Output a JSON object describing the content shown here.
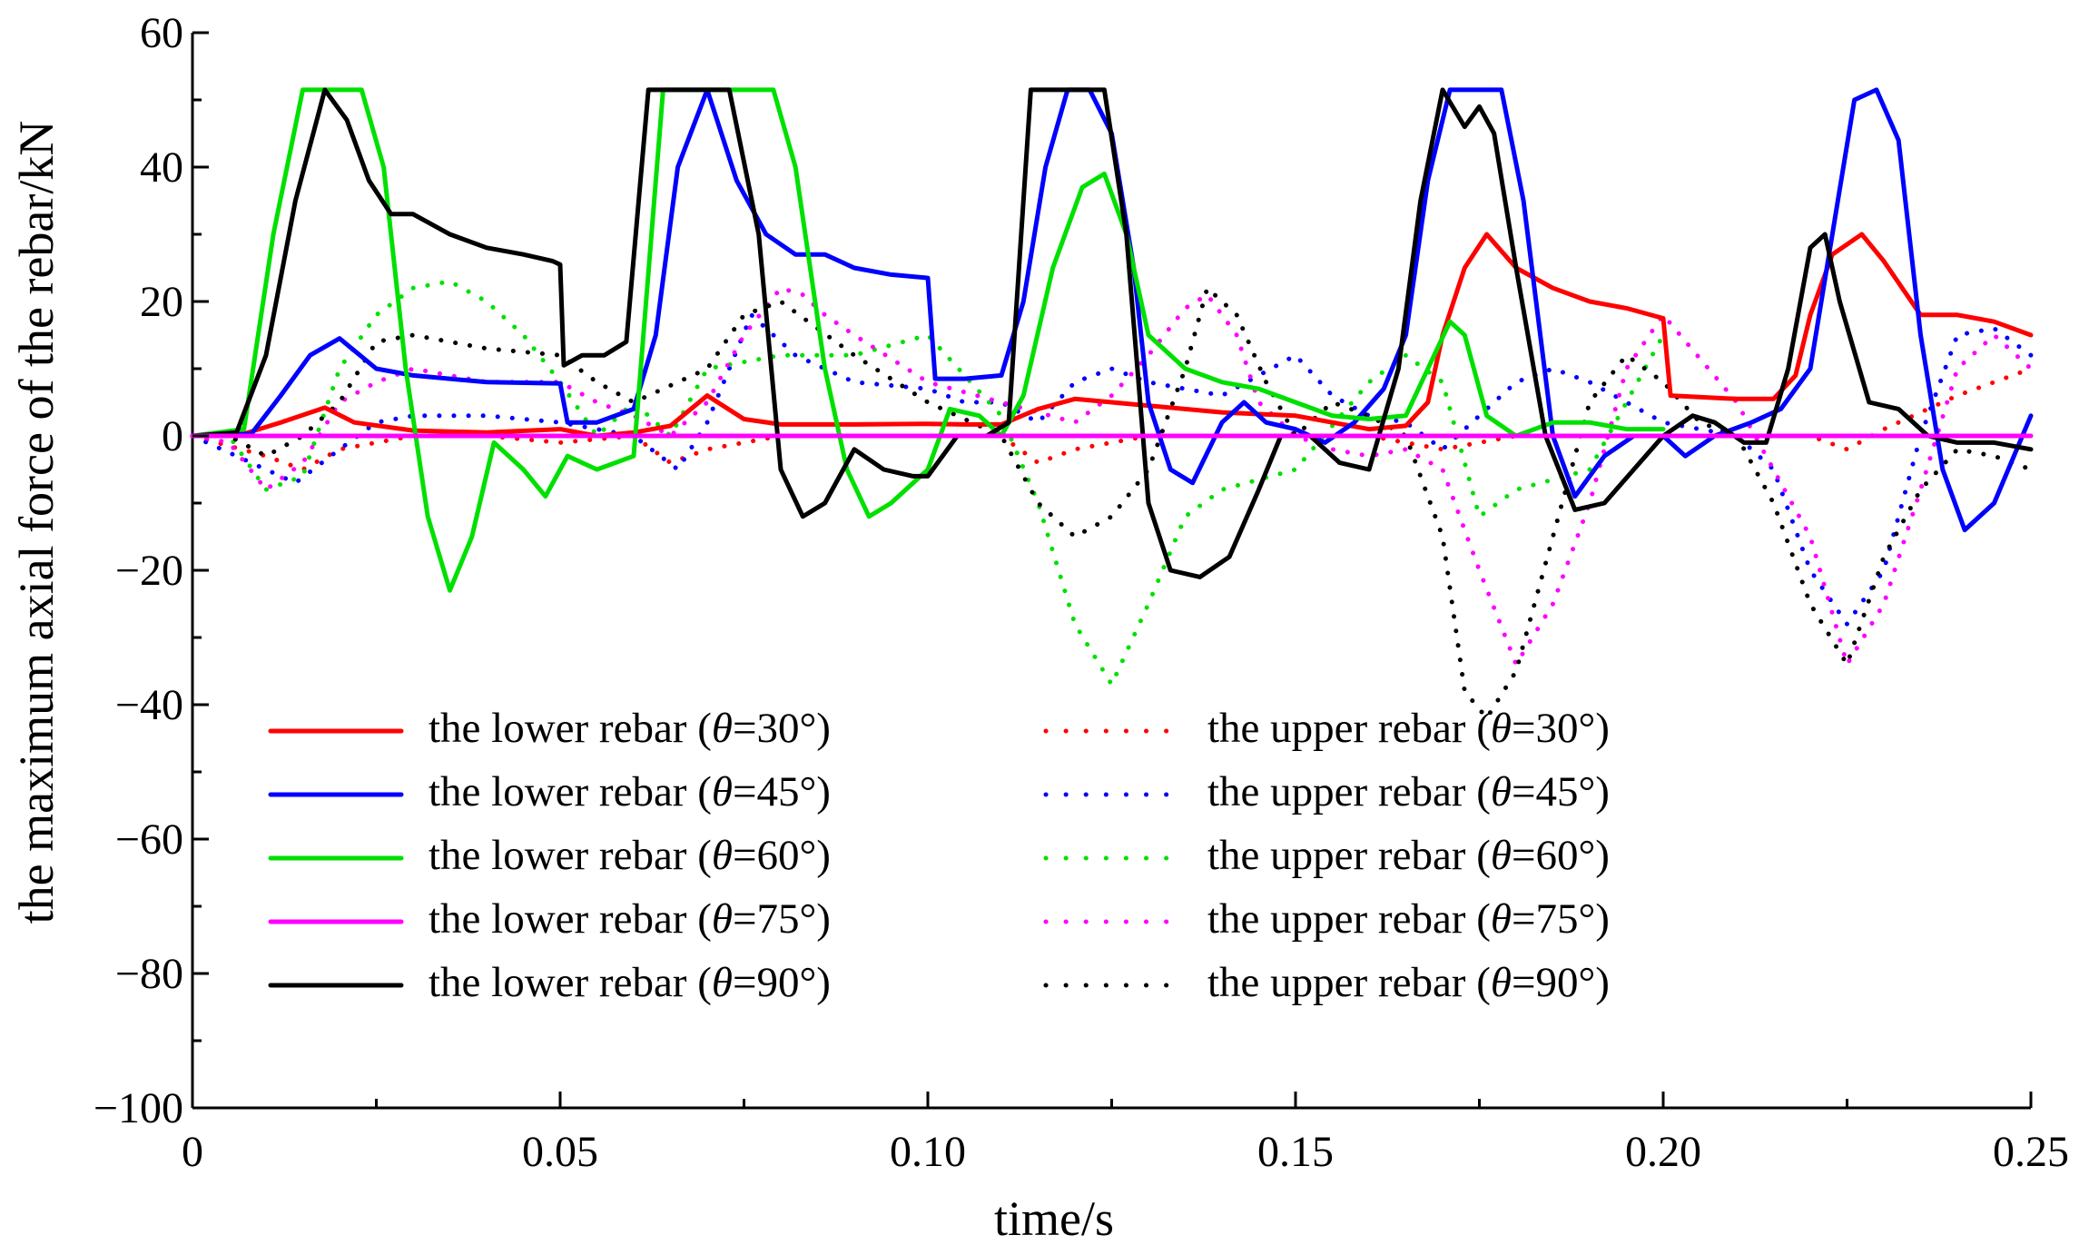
{
  "chart_data": {
    "type": "line",
    "title": "",
    "xlabel": "time/s",
    "ylabel": "the maximum axial force of the rebar/kN",
    "xlim": [
      0,
      0.25
    ],
    "ylim": [
      -100,
      60
    ],
    "x_ticks": [
      {
        "value": 0,
        "label": "0"
      },
      {
        "value": 0.05,
        "label": "0.05"
      },
      {
        "value": 0.1,
        "label": "0.10"
      },
      {
        "value": 0.15,
        "label": "0.15"
      },
      {
        "value": 0.2,
        "label": "0.20"
      },
      {
        "value": 0.25,
        "label": "0.25"
      }
    ],
    "y_ticks": [
      {
        "value": 60,
        "label": "60"
      },
      {
        "value": 40,
        "label": "40"
      },
      {
        "value": 20,
        "label": "20"
      },
      {
        "value": 0,
        "label": "0"
      },
      {
        "value": -20,
        "label": "−20"
      },
      {
        "value": -40,
        "label": "−40"
      },
      {
        "value": -60,
        "label": "−60"
      },
      {
        "value": -80,
        "label": "−80"
      },
      {
        "value": -100,
        "label": "−100"
      }
    ],
    "legend_position": "lower-left inside plot, two columns",
    "series": [
      {
        "name": "the lower rebar (θ=30°)",
        "prefix": "the lower rebar (",
        "angle": "=30°)",
        "color": "#ff0000",
        "style": "solid",
        "x": [
          0,
          0.007,
          0.012,
          0.018,
          0.022,
          0.03,
          0.04,
          0.05,
          0.055,
          0.06,
          0.065,
          0.07,
          0.075,
          0.08,
          0.09,
          0.1,
          0.105,
          0.11,
          0.115,
          0.12,
          0.125,
          0.13,
          0.14,
          0.15,
          0.16,
          0.165,
          0.168,
          0.17,
          0.173,
          0.176,
          0.18,
          0.185,
          0.19,
          0.195,
          0.2,
          0.201,
          0.21,
          0.215,
          0.218,
          0.22,
          0.223,
          0.227,
          0.23,
          0.235,
          0.24,
          0.245,
          0.25
        ],
        "y": [
          0,
          0.3,
          2,
          4.2,
          2,
          0.8,
          0.5,
          1,
          0,
          0.5,
          1.5,
          6,
          2.5,
          1.7,
          1.7,
          1.8,
          1.7,
          1.7,
          4,
          5.5,
          5,
          4.5,
          3.5,
          3,
          1,
          1.5,
          5,
          15,
          25,
          30,
          25,
          22,
          20,
          19,
          17.5,
          6,
          5.5,
          5.5,
          9,
          18,
          27,
          30,
          26,
          18,
          18,
          17,
          15
        ]
      },
      {
        "name": "the lower rebar (θ=45°)",
        "prefix": "the lower rebar (",
        "angle": "=45°)",
        "color": "#0000ff",
        "style": "solid",
        "x": [
          0,
          0.008,
          0.012,
          0.016,
          0.02,
          0.025,
          0.03,
          0.04,
          0.05,
          0.051,
          0.055,
          0.06,
          0.063,
          0.066,
          0.07,
          0.074,
          0.078,
          0.082,
          0.086,
          0.09,
          0.095,
          0.1,
          0.101,
          0.105,
          0.11,
          0.113,
          0.116,
          0.119,
          0.122,
          0.125,
          0.128,
          0.13,
          0.133,
          0.136,
          0.14,
          0.143,
          0.146,
          0.15,
          0.154,
          0.158,
          0.162,
          0.165,
          0.168,
          0.171,
          0.174,
          0.178,
          0.181,
          0.185,
          0.188,
          0.192,
          0.196,
          0.2,
          0.203,
          0.207,
          0.212,
          0.216,
          0.22,
          0.223,
          0.226,
          0.229,
          0.232,
          0.235,
          0.238,
          0.241,
          0.245,
          0.25
        ],
        "y": [
          0,
          0.3,
          6,
          12,
          14.5,
          10,
          9,
          8,
          7.8,
          2,
          2,
          4,
          15,
          40,
          51.5,
          38,
          30,
          27,
          27,
          25,
          24,
          23.5,
          8.5,
          8.5,
          9,
          20,
          40,
          51.5,
          51.5,
          45,
          25,
          5,
          -5,
          -7,
          2,
          5,
          2,
          1,
          -1,
          2,
          7,
          15,
          38,
          51.5,
          51.5,
          51.5,
          35,
          0,
          -9,
          -3,
          0,
          0,
          -3,
          0,
          2,
          4,
          10,
          30,
          50,
          51.5,
          44,
          15,
          -5,
          -14,
          -10,
          3
        ]
      },
      {
        "name": "the lower rebar (θ=60°)",
        "prefix": "the lower rebar (",
        "angle": "=60°)",
        "color": "#00e000",
        "style": "solid",
        "x": [
          0,
          0.007,
          0.011,
          0.015,
          0.019,
          0.023,
          0.026,
          0.029,
          0.032,
          0.035,
          0.038,
          0.041,
          0.045,
          0.048,
          0.05,
          0.051,
          0.055,
          0.06,
          0.064,
          0.068,
          0.072,
          0.076,
          0.079,
          0.082,
          0.086,
          0.089,
          0.092,
          0.095,
          0.1,
          0.103,
          0.107,
          0.11,
          0.113,
          0.117,
          0.121,
          0.124,
          0.127,
          0.13,
          0.135,
          0.14,
          0.145,
          0.15,
          0.155,
          0.16,
          0.165,
          0.168,
          0.171,
          0.173,
          0.176,
          0.18,
          0.185,
          0.19,
          0.195,
          0.2
        ],
        "y": [
          0,
          1,
          30,
          51.5,
          51.5,
          51.5,
          40,
          10,
          -12,
          -23,
          -15,
          -1,
          -5,
          -9,
          -5,
          -3,
          -5,
          -3,
          51.5,
          51.5,
          51.5,
          51.5,
          51.5,
          40,
          10,
          -5,
          -12,
          -10,
          -5,
          4,
          3,
          0,
          6,
          25,
          37,
          39,
          30,
          15,
          10,
          8,
          7,
          5,
          3,
          2.5,
          3,
          10,
          17,
          15,
          3,
          0,
          2,
          2,
          1,
          1
        ]
      },
      {
        "name": "the lower rebar (θ=75°)",
        "prefix": "the lower rebar (",
        "angle": "=75°)",
        "color": "#ff00ff",
        "style": "solid",
        "x": [
          0,
          0.25
        ],
        "y": [
          0,
          0
        ]
      },
      {
        "name": "the lower rebar (θ=90°)",
        "prefix": "the lower rebar (",
        "angle": "=90°)",
        "color": "#000000",
        "style": "solid",
        "x": [
          0,
          0.006,
          0.01,
          0.014,
          0.018,
          0.021,
          0.024,
          0.027,
          0.03,
          0.035,
          0.04,
          0.045,
          0.049,
          0.05,
          0.0505,
          0.053,
          0.056,
          0.059,
          0.062,
          0.065,
          0.069,
          0.073,
          0.077,
          0.08,
          0.083,
          0.086,
          0.09,
          0.094,
          0.098,
          0.1,
          0.104,
          0.108,
          0.111,
          0.114,
          0.117,
          0.121,
          0.124,
          0.127,
          0.13,
          0.133,
          0.137,
          0.141,
          0.145,
          0.148,
          0.152,
          0.156,
          0.16,
          0.164,
          0.167,
          0.17,
          0.173,
          0.175,
          0.177,
          0.18,
          0.184,
          0.188,
          0.192,
          0.196,
          0.2,
          0.204,
          0.207,
          0.211,
          0.214,
          0.217,
          0.22,
          0.222,
          0.224,
          0.228,
          0.232,
          0.236,
          0.24,
          0.245,
          0.25
        ],
        "y": [
          0,
          0.5,
          12,
          35,
          51.5,
          47,
          38,
          33,
          33,
          30,
          28,
          27,
          26,
          25.5,
          10.5,
          12,
          12,
          14,
          51.5,
          51.5,
          51.5,
          51.5,
          30,
          -5,
          -12,
          -10,
          -2,
          -5,
          -6,
          -6,
          0,
          0,
          2,
          51.5,
          51.5,
          51.5,
          51.5,
          30,
          -10,
          -20,
          -21,
          -18,
          -8,
          0,
          0,
          -4,
          -5,
          10,
          35,
          51.5,
          46,
          49,
          45,
          25,
          0,
          -11,
          -10,
          -5,
          0,
          3,
          2,
          -1,
          -1,
          10,
          28,
          30,
          20,
          5,
          4,
          0,
          -1,
          -1,
          -2
        ]
      },
      {
        "name": "the upper rebar (θ=30°)",
        "prefix": "the upper rebar (",
        "angle": "=30°)",
        "color": "#ff0000",
        "style": "dotted",
        "x": [
          0,
          0.01,
          0.015,
          0.02,
          0.03,
          0.04,
          0.05,
          0.06,
          0.065,
          0.07,
          0.08,
          0.09,
          0.1,
          0.11,
          0.115,
          0.12,
          0.13,
          0.14,
          0.15,
          0.16,
          0.17,
          0.175,
          0.18,
          0.19,
          0.2,
          0.21,
          0.22,
          0.225,
          0.23,
          0.24,
          0.25
        ],
        "y": [
          0,
          -3,
          -5,
          -2,
          0,
          0,
          -1,
          0,
          -4,
          -2,
          0,
          0,
          0,
          0,
          -4,
          -2,
          0,
          0,
          0,
          0,
          -2,
          -1,
          0,
          0,
          0,
          0,
          0,
          -2,
          1,
          6,
          10
        ]
      },
      {
        "name": "the upper rebar (θ=45°)",
        "prefix": "the upper rebar (",
        "angle": "=45°)",
        "color": "#0000ff",
        "style": "dotted",
        "x": [
          0,
          0.01,
          0.014,
          0.02,
          0.025,
          0.03,
          0.04,
          0.05,
          0.06,
          0.066,
          0.07,
          0.076,
          0.082,
          0.09,
          0.1,
          0.105,
          0.11,
          0.115,
          0.12,
          0.125,
          0.13,
          0.14,
          0.15,
          0.155,
          0.16,
          0.165,
          0.17,
          0.175,
          0.18,
          0.185,
          0.19,
          0.195,
          0.2,
          0.21,
          0.215,
          0.22,
          0.225,
          0.23,
          0.235,
          0.24,
          0.245,
          0.25
        ],
        "y": [
          0,
          -5,
          -7,
          -2,
          2,
          3,
          3,
          2,
          0,
          -5,
          2,
          18,
          12,
          8,
          7,
          5,
          5,
          2,
          8,
          10,
          8,
          6,
          12,
          6,
          3,
          2,
          -2,
          3,
          8,
          10,
          8,
          5,
          2,
          0,
          -5,
          -20,
          -28,
          -20,
          0,
          15,
          16,
          12
        ]
      },
      {
        "name": "the upper rebar (θ=60°)",
        "prefix": "the upper rebar (",
        "angle": "=60°)",
        "color": "#00e000",
        "style": "dotted",
        "x": [
          0,
          0.005,
          0.01,
          0.015,
          0.02,
          0.025,
          0.03,
          0.035,
          0.04,
          0.045,
          0.05,
          0.055,
          0.06,
          0.065,
          0.07,
          0.08,
          0.09,
          0.1,
          0.11,
          0.115,
          0.12,
          0.125,
          0.13,
          0.135,
          0.14,
          0.15,
          0.16,
          0.165,
          0.17,
          0.175,
          0.18,
          0.19,
          0.2
        ],
        "y": [
          0,
          0,
          -8,
          -6,
          10,
          18,
          22,
          23,
          20,
          15,
          8,
          0,
          5,
          0,
          10,
          12,
          12,
          15,
          3,
          -10,
          -28,
          -37,
          -25,
          -12,
          -8,
          -5,
          8,
          12,
          8,
          -12,
          -8,
          -5,
          15
        ]
      },
      {
        "name": "the upper rebar (θ=75°)",
        "prefix": "the upper rebar (",
        "angle": "=75°)",
        "color": "#ff00ff",
        "style": "dotted",
        "x": [
          0,
          0.005,
          0.01,
          0.015,
          0.02,
          0.025,
          0.03,
          0.04,
          0.05,
          0.055,
          0.06,
          0.065,
          0.07,
          0.075,
          0.08,
          0.083,
          0.086,
          0.09,
          0.1,
          0.11,
          0.12,
          0.125,
          0.13,
          0.135,
          0.138,
          0.142,
          0.145,
          0.15,
          0.155,
          0.16,
          0.165,
          0.17,
          0.175,
          0.18,
          0.185,
          0.19,
          0.195,
          0.2,
          0.21,
          0.22,
          0.225,
          0.23,
          0.235,
          0.24,
          0.245,
          0.25
        ],
        "y": [
          0,
          -1,
          -8,
          -4,
          5,
          8,
          10,
          8,
          8,
          5,
          3,
          0,
          5,
          15,
          22,
          21,
          18,
          15,
          8,
          5,
          2,
          6,
          12,
          19,
          21,
          15,
          5,
          0,
          -2,
          -3,
          -2,
          -5,
          -20,
          -34,
          -25,
          -10,
          10,
          18,
          5,
          -15,
          -34,
          -25,
          -8,
          10,
          15,
          10
        ]
      },
      {
        "name": "the upper rebar (θ=90°)",
        "prefix": "the upper rebar (",
        "angle": "=90°)",
        "color": "#000000",
        "style": "dotted",
        "x": [
          0,
          0.005,
          0.01,
          0.015,
          0.02,
          0.025,
          0.03,
          0.04,
          0.05,
          0.055,
          0.06,
          0.07,
          0.075,
          0.08,
          0.09,
          0.1,
          0.11,
          0.115,
          0.12,
          0.125,
          0.13,
          0.135,
          0.138,
          0.142,
          0.146,
          0.15,
          0.155,
          0.16,
          0.165,
          0.17,
          0.173,
          0.176,
          0.18,
          0.185,
          0.19,
          0.195,
          0.2,
          0.205,
          0.21,
          0.215,
          0.22,
          0.225,
          0.23,
          0.235,
          0.24,
          0.245,
          0.25
        ],
        "y": [
          0,
          0,
          -3,
          0,
          5,
          14,
          15,
          13,
          12,
          8,
          5,
          10,
          18,
          20,
          12,
          5,
          0,
          -10,
          -15,
          -12,
          -5,
          10,
          22,
          18,
          8,
          0,
          5,
          3,
          0,
          -15,
          -38,
          -42,
          -35,
          -15,
          5,
          12,
          8,
          2,
          0,
          -10,
          -25,
          -34,
          -18,
          -8,
          -2,
          -3,
          -5
        ]
      }
    ]
  }
}
